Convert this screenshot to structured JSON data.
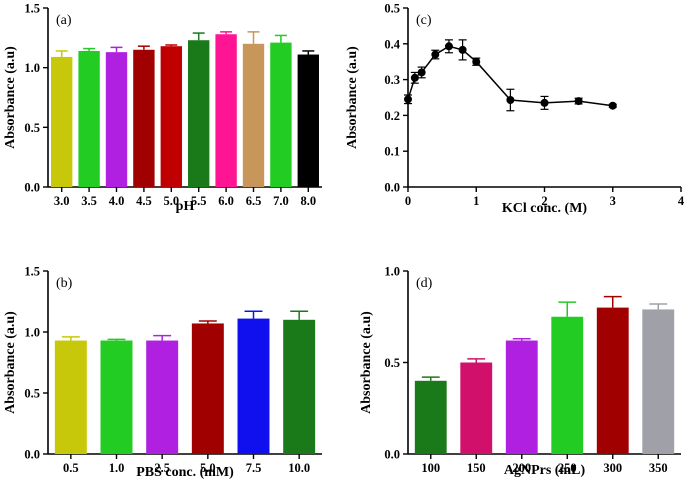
{
  "chart_data": [
    {
      "panel": "(a)",
      "type": "bar",
      "xlabel": "pH",
      "ylabel": "Absorbance (a.u)",
      "ylim": [
        0,
        1.5
      ],
      "yticks": [
        "0.0",
        "0.5",
        "1.0",
        "1.5"
      ],
      "categories": [
        "3.0",
        "3.5",
        "4.0",
        "4.5",
        "5.0",
        "5.5",
        "6.0",
        "6.5",
        "7.0",
        "8.0"
      ],
      "values": [
        1.09,
        1.14,
        1.13,
        1.15,
        1.18,
        1.23,
        1.28,
        1.2,
        1.21,
        1.11
      ],
      "errors": [
        0.05,
        0.02,
        0.04,
        0.03,
        0.01,
        0.06,
        0.02,
        0.1,
        0.06,
        0.03
      ],
      "colors": [
        "#c8c80a",
        "#22cc22",
        "#b020e0",
        "#a00000",
        "#c00000",
        "#1a7a1a",
        "#ff1493",
        "#c8965a",
        "#22cc22",
        "#000000"
      ],
      "legend": "none",
      "grid": false
    },
    {
      "panel": "(c)",
      "type": "line",
      "xlabel": "KCl conc. (M)",
      "ylabel": "Absorbance (a.u)",
      "xlim": [
        0,
        4
      ],
      "ylim": [
        0.0,
        0.5
      ],
      "xticks": [
        "0",
        "1",
        "2",
        "3",
        "4"
      ],
      "yticks": [
        "0.0",
        "0.1",
        "0.2",
        "0.3",
        "0.4",
        "0.5"
      ],
      "x": [
        0,
        0.1,
        0.2,
        0.4,
        0.6,
        0.8,
        1.0,
        1.5,
        2.0,
        2.5,
        3.0
      ],
      "y": [
        0.245,
        0.305,
        0.32,
        0.37,
        0.393,
        0.383,
        0.35,
        0.243,
        0.235,
        0.24,
        0.227
      ],
      "errors": [
        0.012,
        0.015,
        0.015,
        0.012,
        0.018,
        0.028,
        0.01,
        0.03,
        0.018,
        0.008,
        0.004
      ],
      "color": "#000000",
      "legend": "none",
      "grid": false
    },
    {
      "panel": "(b)",
      "type": "bar",
      "xlabel": "PBS conc. (mM)",
      "ylabel": "Absorbance (a.u)",
      "ylim": [
        0,
        1.5
      ],
      "yticks": [
        "0.0",
        "0.5",
        "1.0",
        "1.5"
      ],
      "categories": [
        "0.5",
        "1.0",
        "2.5",
        "5.0",
        "7.5",
        "10.0"
      ],
      "values": [
        0.93,
        0.93,
        0.93,
        1.07,
        1.11,
        1.1
      ],
      "errors": [
        0.03,
        0.01,
        0.04,
        0.02,
        0.06,
        0.07
      ],
      "colors": [
        "#c8c80a",
        "#22cc22",
        "#b020e0",
        "#a00000",
        "#1010ee",
        "#1a7a1a"
      ],
      "legend": "none",
      "grid": false
    },
    {
      "panel": "(d)",
      "type": "bar",
      "xlabel": "AgNPrs (mL)",
      "ylabel": "Absorbance (a.u)",
      "ylim": [
        0,
        1.0
      ],
      "yticks": [
        "0.0",
        "0.5",
        "1.0"
      ],
      "categories": [
        "100",
        "150",
        "200",
        "250",
        "300",
        "350"
      ],
      "values": [
        0.4,
        0.5,
        0.62,
        0.75,
        0.8,
        0.79
      ],
      "errors": [
        0.02,
        0.02,
        0.01,
        0.08,
        0.06,
        0.03
      ],
      "colors": [
        "#1a7a1a",
        "#d0106a",
        "#b020e0",
        "#22cc22",
        "#a00000",
        "#a0a0a8"
      ],
      "legend": "none",
      "grid": false
    }
  ]
}
